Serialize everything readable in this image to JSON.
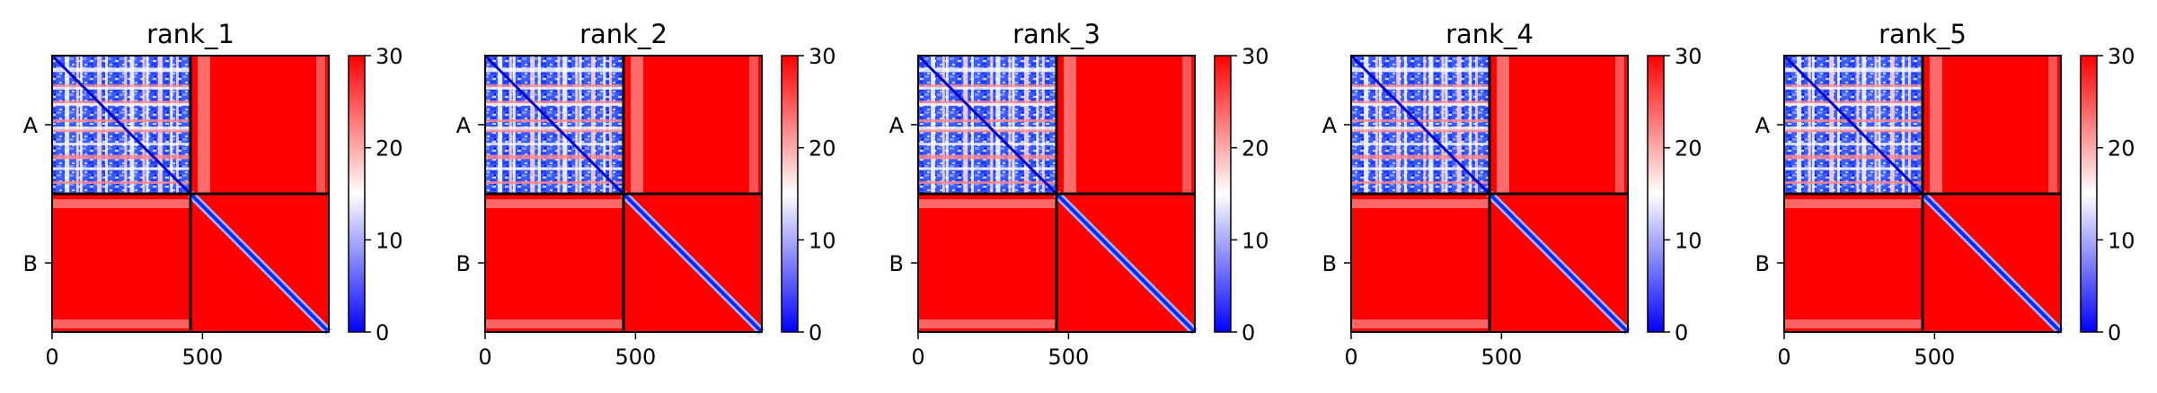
{
  "chart_data": {
    "type": "heatmap",
    "colormap": {
      "name": "bwr",
      "colors": [
        "#0000ff",
        "#ffffff",
        "#ff0000"
      ],
      "range": [
        0,
        30
      ],
      "ticks": [
        0,
        10,
        20,
        30
      ]
    },
    "chains": [
      "A",
      "B"
    ],
    "chain_boundary": 460,
    "sequence_length": 920,
    "x_ticks": [
      0,
      500
    ],
    "panels": [
      {
        "title": "rank_1"
      },
      {
        "title": "rank_2"
      },
      {
        "title": "rank_3"
      },
      {
        "title": "rank_4"
      },
      {
        "title": "rank_5"
      }
    ]
  }
}
